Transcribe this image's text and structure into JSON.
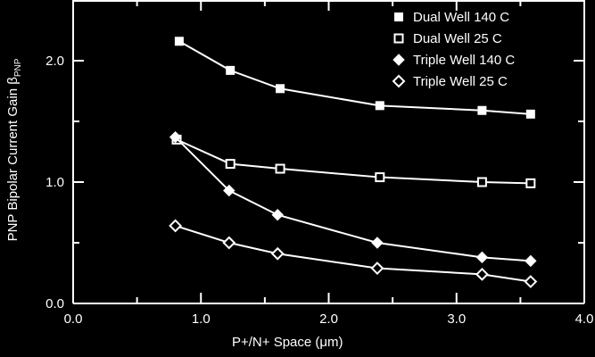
{
  "chart_data": {
    "type": "line",
    "xlabel": "P+/N+ Space (μm)",
    "ylabel": "PNP Bipolar Current Gain β",
    "ylabel_subscript": "PNP",
    "xlim": [
      0.0,
      4.0
    ],
    "ylim": [
      0.0,
      2.5
    ],
    "x_ticks": [
      "0.0",
      "1.0",
      "2.0",
      "3.0",
      "4.0"
    ],
    "y_ticks": [
      "0.0",
      "1.0",
      "2.0"
    ],
    "legend_position": "top-right",
    "colors": {
      "background": "#000000",
      "foreground": "#ffffff"
    },
    "series": [
      {
        "name": "Dual Well 140 C",
        "marker": "filled-square",
        "x": [
          0.83,
          1.23,
          1.62,
          2.4,
          3.2,
          3.58
        ],
        "y": [
          2.16,
          1.92,
          1.77,
          1.63,
          1.59,
          1.56
        ]
      },
      {
        "name": "Dual Well 25 C",
        "marker": "open-square",
        "x": [
          0.81,
          1.23,
          1.62,
          2.4,
          3.2,
          3.58
        ],
        "y": [
          1.35,
          1.15,
          1.11,
          1.04,
          1.0,
          0.99
        ]
      },
      {
        "name": "Triple Well  140 C",
        "marker": "filled-diamond",
        "x": [
          0.8,
          1.22,
          1.6,
          2.38,
          3.2,
          3.58
        ],
        "y": [
          1.37,
          0.93,
          0.73,
          0.5,
          0.38,
          0.35
        ]
      },
      {
        "name": "Triple Well 25 C",
        "marker": "open-diamond",
        "x": [
          0.8,
          1.22,
          1.6,
          2.38,
          3.2,
          3.58
        ],
        "y": [
          0.64,
          0.5,
          0.41,
          0.29,
          0.24,
          0.18
        ]
      }
    ]
  }
}
